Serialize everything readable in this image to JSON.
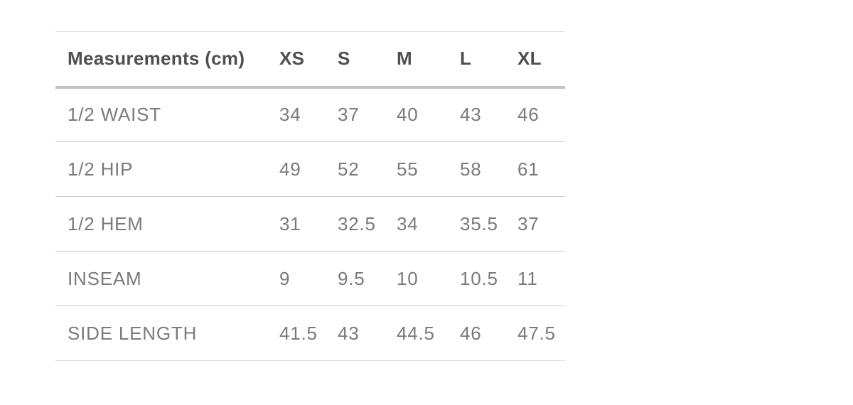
{
  "chart_data": {
    "type": "table",
    "title": "Measurements (cm)",
    "header": [
      "Measurements (cm)",
      "XS",
      "S",
      "M",
      "L",
      "XL"
    ],
    "rows": [
      {
        "label": "1/2 WAIST",
        "values": [
          "34",
          "37",
          "40",
          "43",
          "46"
        ]
      },
      {
        "label": "1/2 HIP",
        "values": [
          "49",
          "52",
          "55",
          "58",
          "61"
        ]
      },
      {
        "label": "1/2 HEM",
        "values": [
          "31",
          "32.5",
          "34",
          "35.5",
          "37"
        ]
      },
      {
        "label": "INSEAM",
        "values": [
          "9",
          "9.5",
          "10",
          "10.5",
          "11"
        ]
      },
      {
        "label": "SIDE LENGTH",
        "values": [
          "41.5",
          "43",
          "44.5",
          "46",
          "47.5"
        ]
      }
    ],
    "layout": {
      "header_text_color": "#4f4f4f",
      "body_text_color": "#7a7a7a",
      "separator_color": "#c9c9c9",
      "header_rule_color": "#c3c3c3",
      "outer_rule_color": "#dedede",
      "background": "#ffffff"
    }
  }
}
